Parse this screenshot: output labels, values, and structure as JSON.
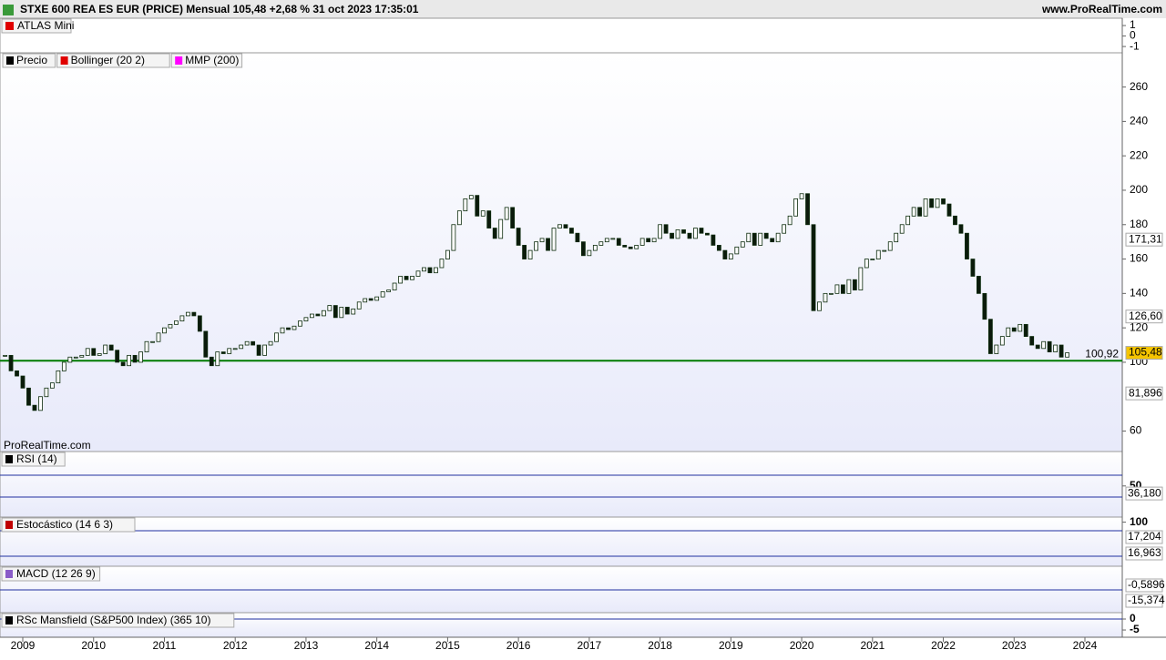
{
  "header": {
    "title": "STXE 600 REA ES EUR (PRICE) Mensual 105,48 +2,68 % 31 oct 2023 17:35:01",
    "site": "www.ProRealTime.com",
    "watermark": "ProRealTime.com"
  },
  "atlas": {
    "legend": "ATLAS Mini",
    "ylim": [
      -1.6,
      1.7
    ],
    "yticks": [
      1,
      0,
      -1
    ]
  },
  "chart_data": {
    "type": "candlestick",
    "categories": [
      null,
      null,
      null,
      "2009",
      null,
      null,
      null,
      null,
      null,
      null,
      null,
      null,
      null,
      null,
      null,
      "2010",
      null,
      null,
      null,
      null,
      null,
      null,
      null,
      null,
      null,
      null,
      null,
      "2011",
      null,
      null,
      null,
      null,
      null,
      null,
      null,
      null,
      null,
      null,
      null,
      "2012",
      null,
      null,
      null,
      null,
      null,
      null,
      null,
      null,
      null,
      null,
      null,
      "2013",
      null,
      null,
      null,
      null,
      null,
      null,
      null,
      null,
      null,
      null,
      null,
      "2014",
      null,
      null,
      null,
      null,
      null,
      null,
      null,
      null,
      null,
      null,
      null,
      "2015",
      null,
      null,
      null,
      null,
      null,
      null,
      null,
      null,
      null,
      null,
      null,
      "2016",
      null,
      null,
      null,
      null,
      null,
      null,
      null,
      null,
      null,
      null,
      null,
      "2017",
      null,
      null,
      null,
      null,
      null,
      null,
      null,
      null,
      null,
      null,
      null,
      "2018",
      null,
      null,
      null,
      null,
      null,
      null,
      null,
      null,
      null,
      null,
      null,
      "2019",
      null,
      null,
      null,
      null,
      null,
      null,
      null,
      null,
      null,
      null,
      null,
      "2020",
      null,
      null,
      null,
      null,
      null,
      null,
      null,
      null,
      null,
      null,
      null,
      "2021",
      null,
      null,
      null,
      null,
      null,
      null,
      null,
      null,
      null,
      null,
      null,
      "2022",
      null,
      null,
      null,
      null,
      null,
      null,
      null,
      null,
      null,
      null,
      null,
      "2023",
      null,
      null,
      null,
      null,
      null,
      null,
      null,
      null,
      null,
      null,
      null,
      "2024"
    ],
    "series": [
      {
        "name": "Precio",
        "color": "#000000",
        "values": [
          104,
          95,
          92,
          85,
          75,
          72,
          80,
          85,
          88,
          95,
          100,
          103,
          103,
          104,
          108,
          104,
          105,
          110,
          107,
          100,
          98,
          104,
          100,
          106,
          112,
          112,
          117,
          120,
          122,
          124,
          127,
          129,
          127,
          118,
          103,
          98,
          106,
          105,
          108,
          108,
          110,
          112,
          110,
          104,
          110,
          112,
          117,
          120,
          119,
          121,
          124,
          126,
          128,
          127,
          130,
          133,
          126,
          132,
          128,
          131,
          135,
          137,
          136,
          138,
          141,
          142,
          146,
          150,
          148,
          150,
          153,
          155,
          152,
          155,
          160,
          165,
          180,
          188,
          195,
          197,
          185,
          188,
          178,
          172,
          183,
          190,
          178,
          168,
          160,
          165,
          170,
          172,
          165,
          178,
          180,
          178,
          175,
          170,
          162,
          165,
          168,
          170,
          172,
          172,
          168,
          167,
          166,
          168,
          172,
          170,
          172,
          180,
          175,
          172,
          177,
          175,
          172,
          178,
          175,
          174,
          168,
          165,
          160,
          163,
          167,
          170,
          175,
          168,
          175,
          172,
          170,
          175,
          180,
          185,
          195,
          198,
          180,
          130,
          135,
          140,
          140,
          145,
          140,
          148,
          142,
          155,
          160,
          160,
          165,
          165,
          170,
          175,
          180,
          185,
          190,
          185,
          195,
          190,
          195,
          192,
          185,
          180,
          175,
          160,
          150,
          140,
          125,
          105,
          110,
          115,
          120,
          118,
          122,
          115,
          110,
          108,
          112,
          106,
          110,
          103,
          105.48,
          null,
          null,
          null
        ]
      }
    ],
    "indicators": [
      {
        "name": "Bollinger (20 2)",
        "color": "#e00000"
      },
      {
        "name": "MMP (200)",
        "color": "#ff00ff"
      }
    ],
    "ylim": [
      48.1,
      279.9
    ],
    "yticks": [
      60,
      100,
      120,
      140,
      160,
      180,
      200,
      220,
      240,
      260
    ],
    "support": {
      "value": 100.92,
      "label": "100,92",
      "color": "#007a00"
    },
    "value_labels": [
      {
        "value": 171.31,
        "label": "171,31",
        "color": "#808080",
        "bg": "#ffffff"
      },
      {
        "value": 126.6,
        "label": "126,60",
        "color": "#e00000",
        "bg": "#ffffff"
      },
      {
        "value": 105.48,
        "label": "105,48",
        "color": "#000000",
        "bg": "#f5c400"
      },
      {
        "value": 81.896,
        "label": "81,896",
        "color": "#808080",
        "bg": "#ffffff"
      }
    ]
  },
  "panels": [
    {
      "legend": "RSI (14)",
      "color": "#000000",
      "ylim": [
        -7,
        113
      ],
      "yticks": [
        50
      ],
      "value_labels": [
        {
          "value": 36.18,
          "label": "36,180",
          "color": "#000000"
        }
      ]
    },
    {
      "legend": "Estocástico (14 6 3)",
      "color": "#c00000",
      "ylim": [
        -4,
        112
      ],
      "yticks": [
        100
      ],
      "value_labels": [
        {
          "value": 17.204,
          "label": "17,204",
          "color": "#e00000"
        },
        {
          "value": 16.963,
          "label": "16,963",
          "color": "#000000"
        }
      ]
    },
    {
      "legend": "MACD (12 26 9)",
      "color": "#8a5cc8",
      "value_labels": [
        {
          "value": -0.5896,
          "label": "-0,5896",
          "color": "#e00000"
        },
        {
          "value": -15.374,
          "label": "-15,374",
          "color": "#2030a0"
        }
      ]
    },
    {
      "legend": "RSc Mansfield (S&P500 Index) (365 10)",
      "color": "#000000",
      "ylim": [
        -8.3,
        2.9
      ],
      "yticks": [
        0,
        -5
      ],
      "value_labels": []
    }
  ]
}
